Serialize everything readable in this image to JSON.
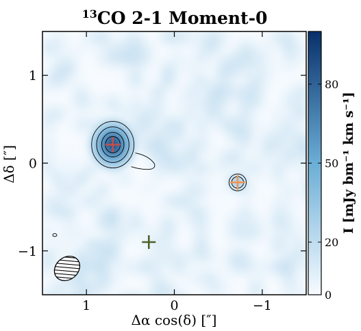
{
  "chart_data": {
    "type": "heatmap",
    "title": "13CO 2-1 Moment-0",
    "title_superscript": "13",
    "title_rest": "CO 2-1 Moment-0",
    "xlabel": "Δα cos(δ) [″]",
    "ylabel": "Δδ [″]",
    "colorbar_label": "I [mJy bm⁻¹ km s⁻¹]",
    "xlim": [
      1.5,
      -1.5
    ],
    "ylim": [
      -1.5,
      1.5
    ],
    "x_ticks": [
      1,
      0,
      -1
    ],
    "x_tick_labels": [
      "1",
      "0",
      "−1"
    ],
    "y_ticks": [
      1,
      0,
      -1
    ],
    "y_tick_labels": [
      "1",
      "0",
      "−1"
    ],
    "colorbar_range": [
      0,
      100
    ],
    "colorbar_ticks": [
      0,
      20,
      50,
      80
    ],
    "colorbar_tick_labels": [
      "0",
      "20",
      "50",
      "80"
    ],
    "colormap": {
      "low": "#f7fbff",
      "mid": "#6baed6",
      "high": "#08306b"
    },
    "sources": [
      {
        "x": 0.7,
        "y": 0.21,
        "peak": 95,
        "marker": "plus",
        "color": "#c0504d",
        "contour_levels": [
          30,
          50,
          70,
          85
        ]
      },
      {
        "x": -0.72,
        "y": -0.22,
        "peak": 40,
        "marker": "plus",
        "color": "#f0965a",
        "contour_levels": [
          20,
          30
        ]
      }
    ],
    "markers": [
      {
        "x": 0.29,
        "y": -0.9,
        "shape": "plus",
        "color": "#4f6228"
      }
    ],
    "beam": {
      "x": 1.22,
      "y": -1.2,
      "major": 0.27,
      "minor": 0.22,
      "angle_deg": 30,
      "hatch": true
    },
    "noise_contour": {
      "x": 1.36,
      "y": -0.82
    },
    "grid": false
  }
}
